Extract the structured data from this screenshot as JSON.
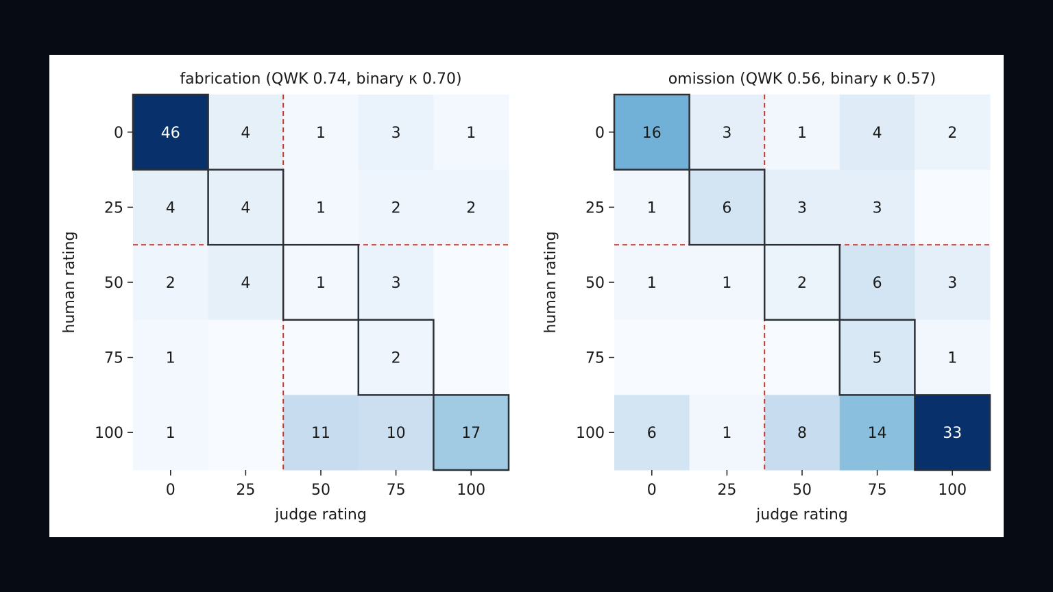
{
  "chart_data": [
    {
      "type": "heatmap",
      "title": "fabrication  (QWK 0.74, binary κ 0.70)",
      "xlabel": "judge rating",
      "ylabel": "human rating",
      "x_categories": [
        "0",
        "25",
        "50",
        "75",
        "100"
      ],
      "y_categories": [
        "0",
        "25",
        "50",
        "75",
        "100"
      ],
      "values": [
        [
          46,
          4,
          1,
          3,
          1
        ],
        [
          4,
          4,
          1,
          2,
          2
        ],
        [
          2,
          4,
          1,
          3,
          0
        ],
        [
          1,
          0,
          0,
          2,
          0
        ],
        [
          1,
          0,
          11,
          10,
          17
        ]
      ],
      "vmax": 46,
      "colormap": "Blues",
      "binary_threshold_after_index": 1,
      "diagonal_outlined": true
    },
    {
      "type": "heatmap",
      "title": "omission  (QWK 0.56, binary κ 0.57)",
      "xlabel": "judge rating",
      "ylabel": "human rating",
      "x_categories": [
        "0",
        "25",
        "50",
        "75",
        "100"
      ],
      "y_categories": [
        "0",
        "25",
        "50",
        "75",
        "100"
      ],
      "values": [
        [
          16,
          3,
          1,
          4,
          2
        ],
        [
          1,
          6,
          3,
          3,
          0
        ],
        [
          1,
          1,
          2,
          6,
          3
        ],
        [
          0,
          0,
          0,
          5,
          1
        ],
        [
          6,
          1,
          8,
          14,
          33
        ]
      ],
      "vmax": 33,
      "colormap": "Blues",
      "binary_threshold_after_index": 1,
      "diagonal_outlined": true
    }
  ],
  "colors": {
    "page_background": "#070b14",
    "figure_background": "#ffffff",
    "threshold_line": "#c0392b",
    "diagonal_outline": "#2b2f36",
    "text_dark": "#1a1a1a",
    "text_light": "#ffffff"
  }
}
